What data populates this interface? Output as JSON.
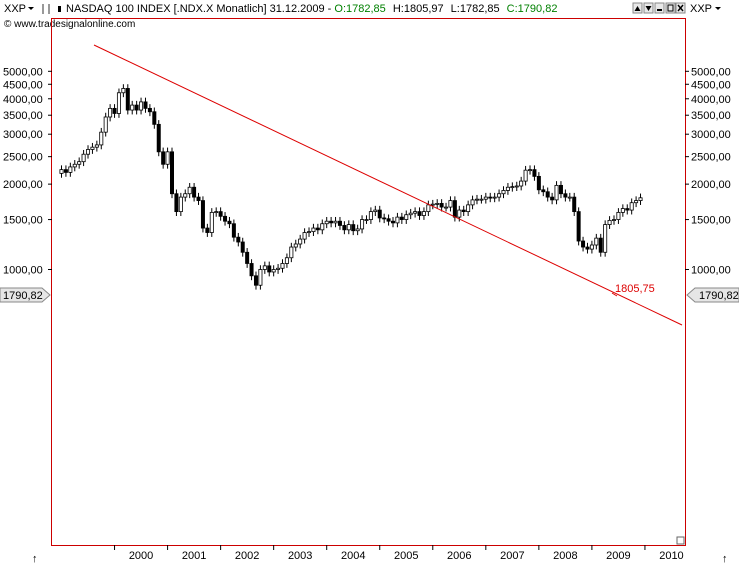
{
  "header": {
    "symbol": "XXP",
    "title": "NASDAQ 100 INDEX [.NDX.X  Monatlich] 31.12.2009 -",
    "open": "O:1782,85",
    "high": "H:1805,97",
    "low": "L:1782,85",
    "close": "C:1790,82",
    "copyright": "© www.tradesignalonline.com",
    "right_symbol": "XXP",
    "colors": {
      "open": "#008000",
      "close": "#008000",
      "hl": "#000000"
    }
  },
  "price_tag_left": "1790,82",
  "price_tag_right": "1790,82",
  "trendline_label": "1805,75",
  "bottom_arrow": "↑",
  "colors": {
    "trendline": "#dd0000",
    "candle_up": "#ffffff",
    "candle_down": "#000000",
    "frame": "#cc0000"
  },
  "chart_data": {
    "type": "candlestick",
    "title": "NASDAQ 100 INDEX [.NDX.X  Monatlich] 31.12.2009",
    "xlabel": "",
    "ylabel": "",
    "y_scale": "log",
    "ylim": [
      720,
      5500
    ],
    "x_ticks": [
      "2000",
      "2001",
      "2002",
      "2003",
      "2004",
      "2005",
      "2006",
      "2007",
      "2008",
      "2009",
      "2010"
    ],
    "y_ticks_left": [
      "5000,00",
      "4500,00",
      "4000,00",
      "3500,00",
      "3000,00",
      "2500,00",
      "2000,00",
      "1500,00",
      "1000,00"
    ],
    "y_ticks_right": [
      "5000,00",
      "4500,00",
      "4000,00",
      "3500,00",
      "3000,00",
      "2500,00",
      "2000,00",
      "1500,00",
      "1000,00"
    ],
    "y_tick_values": [
      5000,
      4500,
      4000,
      3500,
      3000,
      2500,
      2000,
      1500,
      1000
    ],
    "x_start": "1999-01",
    "closes": [
      2250,
      2200,
      2300,
      2350,
      2400,
      2550,
      2650,
      2700,
      2750,
      3050,
      3450,
      3700,
      3550,
      4200,
      4350,
      3650,
      3800,
      3650,
      3900,
      3700,
      3600,
      3250,
      2600,
      2350,
      2600,
      1850,
      1600,
      1800,
      1850,
      1950,
      1800,
      1750,
      1400,
      1350,
      1590,
      1600,
      1540,
      1480,
      1450,
      1300,
      1250,
      1150,
      1050,
      950,
      880,
      1000,
      1030,
      980,
      1000,
      1010,
      1050,
      1100,
      1200,
      1230,
      1280,
      1350,
      1360,
      1400,
      1380,
      1450,
      1480,
      1460,
      1480,
      1430,
      1380,
      1440,
      1370,
      1390,
      1500,
      1500,
      1600,
      1620,
      1520,
      1510,
      1480,
      1460,
      1530,
      1500,
      1560,
      1580,
      1600,
      1550,
      1600,
      1690,
      1700,
      1710,
      1660,
      1660,
      1750,
      1530,
      1620,
      1600,
      1690,
      1760,
      1770,
      1770,
      1800,
      1790,
      1800,
      1850,
      1900,
      1950,
      1960,
      1970,
      2050,
      2240,
      2250,
      2130,
      1910,
      1880,
      1800,
      1760,
      1980,
      1850,
      1800,
      1800,
      1600,
      1260,
      1200,
      1180,
      1220,
      1290,
      1150,
      1440,
      1490,
      1500,
      1590,
      1640,
      1620,
      1720,
      1750,
      1790
    ]
  }
}
